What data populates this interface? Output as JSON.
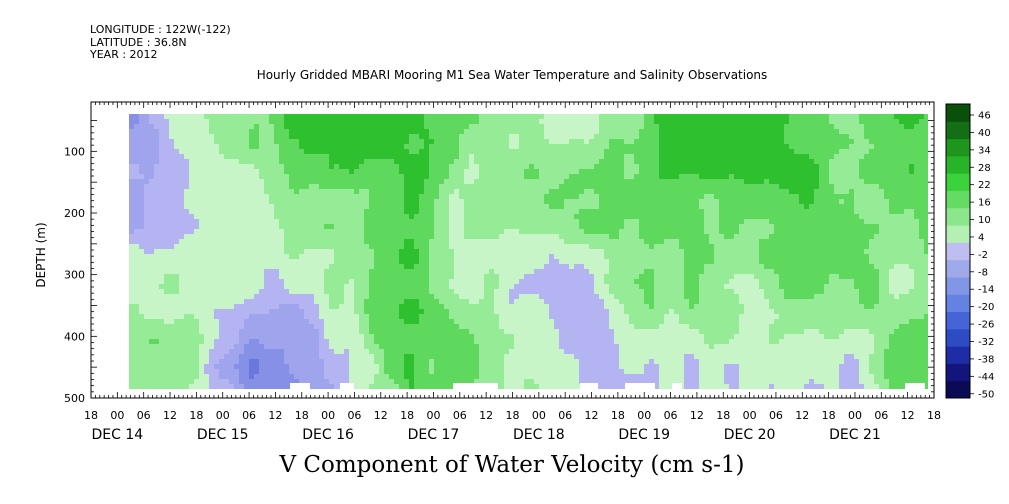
{
  "header": {
    "longitude": "LONGITUDE : 122W(-122)",
    "latitude": "LATITUDE : 36.8N",
    "year": "YEAR : 2012"
  },
  "chart_data": {
    "type": "heatmap",
    "title": "Hourly Gridded MBARI Mooring M1 Sea Water Temperature and Salinity Observations",
    "xlabel": "V Component of Water Velocity (cm s-1)",
    "ylabel": "DEPTH (m)",
    "y_ticks": [
      "100",
      "200",
      "300",
      "400",
      "500"
    ],
    "y_range": [
      20,
      500
    ],
    "y_reversed": true,
    "hour_ticks": [
      "18",
      "00",
      "06",
      "12",
      "18",
      "00",
      "06",
      "12",
      "18",
      "00",
      "06",
      "12",
      "18",
      "00",
      "06",
      "12",
      "18",
      "00",
      "06",
      "12",
      "18",
      "00",
      "06",
      "12",
      "18",
      "00",
      "06",
      "12",
      "18",
      "00",
      "06",
      "12",
      "18"
    ],
    "date_labels": [
      "DEC 14",
      "DEC 15",
      "DEC 16",
      "DEC 17",
      "DEC 18",
      "DEC 19",
      "DEC 20",
      "DEC 21"
    ],
    "x_range": [
      "2012-12-14 18:00",
      "2012-12-22 18:00"
    ],
    "colorbar": {
      "labels": [
        "46",
        "40",
        "34",
        "28",
        "22",
        "16",
        "10",
        "4",
        "-2",
        "-8",
        "-14",
        "-20",
        "-26",
        "-32",
        "-38",
        "-44",
        "-50"
      ],
      "range": [
        -50,
        52
      ],
      "colors": [
        "#0a0a55",
        "#14147d",
        "#1e2da5",
        "#2d4bc3",
        "#4664d7",
        "#6482e1",
        "#8296e6",
        "#a0aaeb",
        "#bebef0",
        "#b4f0b4",
        "#8ce68c",
        "#64dc64",
        "#3cd23c",
        "#28b428",
        "#1e961e",
        "#146e14",
        "#0a500a"
      ]
    }
  }
}
